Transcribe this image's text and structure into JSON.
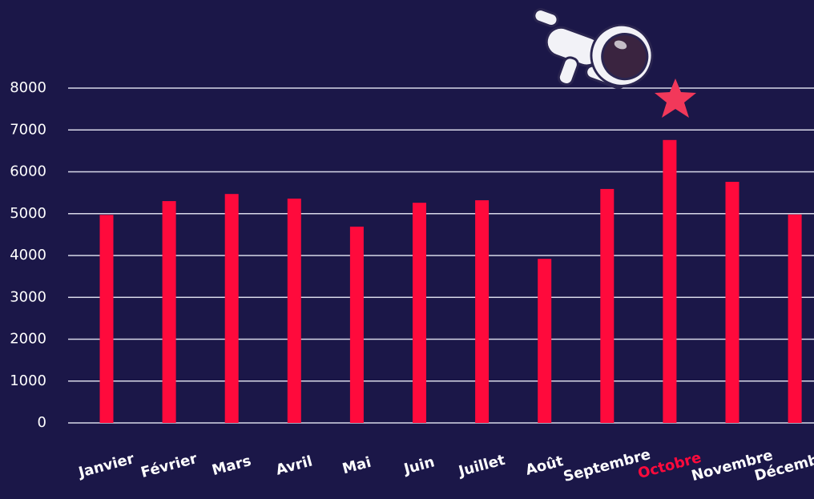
{
  "chart_data": {
    "type": "bar",
    "categories": [
      "Janvier",
      "Février",
      "Mars",
      "Avril",
      "Mai",
      "Juin",
      "Juillet",
      "Août",
      "Septembre",
      "Octobre",
      "Novembre",
      "Décembre"
    ],
    "values": [
      4970,
      5300,
      5470,
      5360,
      4690,
      5260,
      5320,
      3920,
      5590,
      6760,
      5760,
      4980
    ],
    "color": "#ff0a3c",
    "highlighted": 9,
    "ylim": [
      0,
      8000
    ],
    "yticks": [
      0,
      1000,
      2000,
      3000,
      4000,
      5000,
      6000,
      7000,
      8000
    ],
    "grid": true
  }
}
